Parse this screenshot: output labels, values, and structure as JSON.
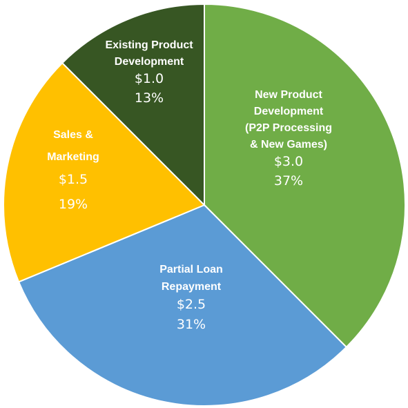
{
  "chart_data": {
    "type": "pie",
    "title": "",
    "slices": [
      {
        "label_lines": [
          "New Product",
          "Development",
          "(P2P Processing",
          "& New Games)"
        ],
        "value": 3.0,
        "value_label": "$3.0",
        "percent_label": "37%",
        "color": "#70ad47"
      },
      {
        "label_lines": [
          "Partial  Loan",
          "Repayment"
        ],
        "value": 2.5,
        "value_label": "$2.5",
        "percent_label": "31%",
        "color": "#5b9bd5"
      },
      {
        "label_lines": [
          "Sales &",
          "Marketing"
        ],
        "value": 1.5,
        "value_label": "$1.5",
        "percent_label": "19%",
        "color": "#ffc000"
      },
      {
        "label_lines": [
          "Existing Product",
          "Development"
        ],
        "value": 1.0,
        "value_label": "$1.0",
        "percent_label": "13%",
        "color": "#375623"
      }
    ],
    "start_angle_deg": 0,
    "direction": "clockwise",
    "legend": "none"
  }
}
